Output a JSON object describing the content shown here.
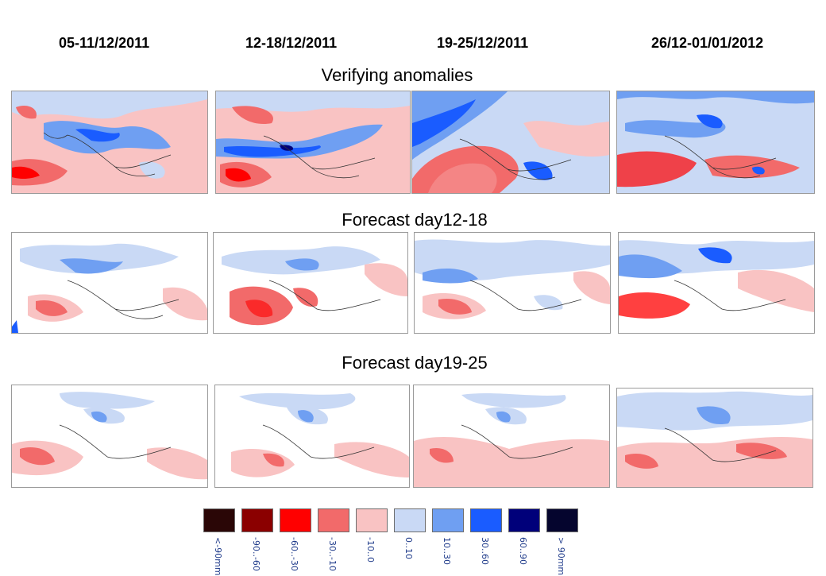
{
  "columns": [
    "05-11/12/2011",
    "12-18/12/2011",
    "19-25/12/2011",
    "26/12-01/01/2012"
  ],
  "rows": [
    {
      "title": "Verifying  anomalies"
    },
    {
      "title": "Forecast day12-18"
    },
    {
      "title": "Forecast day19-25"
    }
  ],
  "legend": [
    {
      "label": "<-90mm",
      "color": "#2a0606"
    },
    {
      "label": "-90..-60",
      "color": "#8b0000"
    },
    {
      "label": "-60..-30",
      "color": "#ff0000"
    },
    {
      "label": "-30..-10",
      "color": "#f26a6a"
    },
    {
      "label": "-10..0",
      "color": "#f9c3c3"
    },
    {
      "label": "0..10",
      "color": "#c9d9f5"
    },
    {
      "label": "10..30",
      "color": "#6f9ff2"
    },
    {
      "label": "30..60",
      "color": "#1a5cff"
    },
    {
      "label": "60..90",
      "color": "#00007a"
    },
    {
      "label": "> 90mm",
      "color": "#05052e"
    }
  ]
}
